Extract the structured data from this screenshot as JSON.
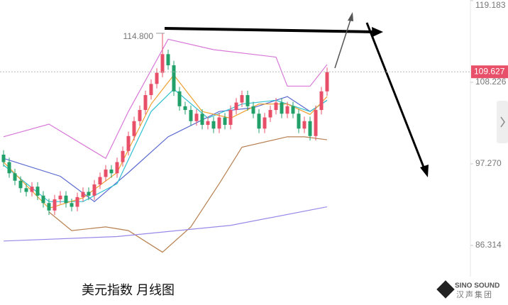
{
  "chart_data": {
    "type": "candlestick",
    "title": "美元指数 月线图",
    "watermark": {
      "brand": "SINO SOUND",
      "subtitle": "汉声集团"
    },
    "ylim": [
      82.12,
      119.27
    ],
    "yticks": [
      119.183,
      108.226,
      {
        "value": 97.27,
        "label": "97.270"
      },
      86.314
    ],
    "current_price": 109.627,
    "max_marker": {
      "value": 114.8,
      "label": "114.800"
    },
    "up_color": "#e8506a",
    "down_color": "#22a06a",
    "candles": {
      "open": [
        98.5,
        97.5,
        96.0,
        95.0,
        94.0,
        93.5,
        94.2,
        93.0,
        92.0,
        91.0,
        92.5,
        93.0,
        92.0,
        91.5,
        92.8,
        93.5,
        93.0,
        94.5,
        95.5,
        96.5,
        96.0,
        97.5,
        99.0,
        101.0,
        103.0,
        104.5,
        106.5,
        108.0,
        109.5,
        112.0,
        110.5,
        107.0,
        105.0,
        104.5,
        103.0,
        104.0,
        102.5,
        103.0,
        102.0,
        103.5,
        102.5,
        104.5,
        105.5,
        106.5,
        105.0,
        104.0,
        102.0,
        103.5,
        104.5,
        105.5,
        104.0,
        105.0,
        104.0,
        102.0,
        103.0,
        101.0,
        104.5,
        107.0
      ],
      "high": [
        99.1,
        98.1,
        96.6,
        95.6,
        94.6,
        94.8,
        94.8,
        93.6,
        92.6,
        93.1,
        93.6,
        93.6,
        92.6,
        93.4,
        94.1,
        94.1,
        95.1,
        96.1,
        97.1,
        97.1,
        98.1,
        99.6,
        101.6,
        103.6,
        105.1,
        107.1,
        108.6,
        110.1,
        114.8,
        112.6,
        111.1,
        107.6,
        105.6,
        105.1,
        104.6,
        104.6,
        103.6,
        103.6,
        104.1,
        104.1,
        105.1,
        106.1,
        107.1,
        107.1,
        105.6,
        104.6,
        104.1,
        105.1,
        106.1,
        106.1,
        105.6,
        105.6,
        104.6,
        103.6,
        103.6,
        105.1,
        107.6,
        110.2
      ],
      "low": [
        96.9,
        95.4,
        94.4,
        93.4,
        92.9,
        92.9,
        92.4,
        91.4,
        90.4,
        90.4,
        91.9,
        91.4,
        90.9,
        90.9,
        92.2,
        92.4,
        92.4,
        93.9,
        94.9,
        95.4,
        95.4,
        96.9,
        98.4,
        100.4,
        102.4,
        103.9,
        105.9,
        107.4,
        108.9,
        109.9,
        106.4,
        104.4,
        103.9,
        102.4,
        102.4,
        101.9,
        101.9,
        101.4,
        101.4,
        101.9,
        101.9,
        103.9,
        104.9,
        104.4,
        103.4,
        101.4,
        101.4,
        102.9,
        103.9,
        103.4,
        103.4,
        103.4,
        101.4,
        101.4,
        100.4,
        100.4,
        103.9,
        106.4
      ],
      "close": [
        97.5,
        96.0,
        95.0,
        94.0,
        93.5,
        94.2,
        93.0,
        92.0,
        91.0,
        92.5,
        93.0,
        92.0,
        91.5,
        92.8,
        93.5,
        93.0,
        94.5,
        95.5,
        96.5,
        96.0,
        97.5,
        99.0,
        101.0,
        103.0,
        104.5,
        106.5,
        108.0,
        109.5,
        112.0,
        110.5,
        107.0,
        105.0,
        104.5,
        103.0,
        104.0,
        102.5,
        103.0,
        102.0,
        103.5,
        102.5,
        104.5,
        105.5,
        106.5,
        105.0,
        104.0,
        102.0,
        103.5,
        104.5,
        105.5,
        104.0,
        105.0,
        104.0,
        102.0,
        103.0,
        101.0,
        104.5,
        107.0,
        109.6
      ]
    },
    "lines": [
      {
        "color": "#d878d8",
        "x": [
          0,
          8,
          18,
          22,
          29,
          37,
          48,
          50,
          54,
          57
        ],
        "values": [
          100.9,
          102.6,
          98.0,
          104.3,
          114.0,
          112.6,
          111.6,
          107.7,
          107.7,
          110.6
        ]
      },
      {
        "color": "#b88050",
        "x": [
          8,
          12,
          18,
          22,
          28,
          33,
          38,
          42,
          50,
          53,
          57
        ],
        "values": [
          90.8,
          88.3,
          88.8,
          88.3,
          85.4,
          88.8,
          94.6,
          99.5,
          100.9,
          100.9,
          100.5
        ]
      },
      {
        "color": "#9a88e8",
        "x": [
          0,
          20,
          40,
          57
        ],
        "values": [
          86.9,
          87.5,
          89.0,
          91.5
        ]
      },
      {
        "color": "#5a6ad0",
        "x": [
          0,
          10,
          16,
          22,
          29,
          38,
          44,
          50,
          54,
          57
        ],
        "values": [
          98.0,
          95.6,
          92.2,
          96.1,
          100.9,
          104.3,
          104.8,
          106.3,
          104.3,
          105.8
        ]
      },
      {
        "color": "#30c0d0",
        "x": [
          0,
          8,
          14,
          20,
          26,
          30,
          36,
          42,
          48,
          54,
          57
        ],
        "values": [
          97.1,
          92.2,
          92.2,
          94.6,
          104.3,
          107.3,
          103.4,
          105.3,
          105.8,
          104.3,
          105.8
        ]
      },
      {
        "color": "#f0a030",
        "x": [
          0,
          8,
          14,
          20,
          26,
          30,
          35,
          40,
          45,
          50,
          54,
          57
        ],
        "values": [
          97.5,
          91.3,
          92.7,
          96.1,
          105.3,
          109.2,
          104.3,
          103.4,
          105.3,
          105.3,
          103.9,
          106.3
        ]
      }
    ]
  }
}
